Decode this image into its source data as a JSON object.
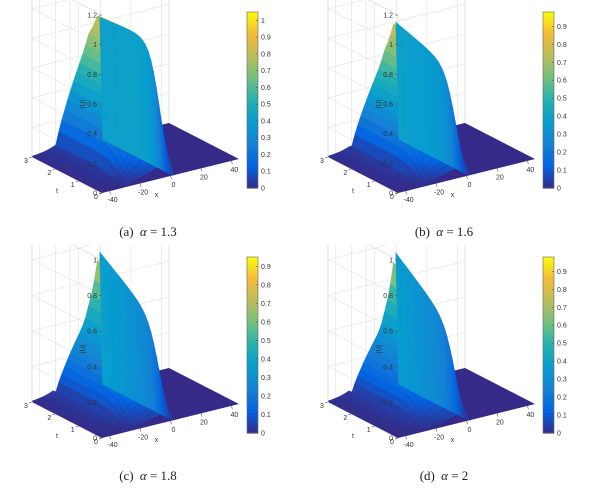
{
  "panels": [
    {
      "caption": {
        "label": "(a)",
        "symbol": "α",
        "eq": "= 1.3"
      },
      "axes": {
        "zlabel": "|U|",
        "xlabel": "x",
        "ylabel": "t",
        "zticks": [
          "0",
          "0.2",
          "0.4",
          "0.6",
          "0.8",
          "1",
          "1.2"
        ],
        "zlim": [
          0,
          1.2
        ],
        "xticks": [
          "-40",
          "-20",
          "0",
          "20",
          "40"
        ],
        "yticks": [
          "0",
          "1",
          "2",
          "3"
        ]
      },
      "colorbar": {
        "ticks": [
          "0",
          "0.1",
          "0.2",
          "0.3",
          "0.4",
          "0.5",
          "0.6",
          "0.7",
          "0.8",
          "0.9",
          "1"
        ],
        "cmax": 1.05
      },
      "surface": {
        "front_peak": 1.02,
        "back_peak": 0.95,
        "shoulder": 0.72
      }
    },
    {
      "caption": {
        "label": "(b)",
        "symbol": "α",
        "eq": "= 1.6"
      },
      "axes": {
        "zlabel": "|U|",
        "xlabel": "x",
        "ylabel": "t",
        "zticks": [
          "0",
          "0.2",
          "0.4",
          "0.6",
          "0.8",
          "1",
          "1.2"
        ],
        "zlim": [
          0,
          1.2
        ],
        "xticks": [
          "-40",
          "-20",
          "0",
          "20",
          "40"
        ],
        "yticks": [
          "0",
          "1",
          "2",
          "3"
        ]
      },
      "colorbar": {
        "ticks": [
          "0",
          "0.1",
          "0.2",
          "0.3",
          "0.4",
          "0.5",
          "0.6",
          "0.7",
          "0.8",
          "0.9"
        ],
        "cmax": 0.98
      },
      "surface": {
        "front_peak": 0.72,
        "back_peak": 0.95,
        "shoulder": 0.6
      }
    },
    {
      "caption": {
        "label": "(c)",
        "symbol": "α",
        "eq": "= 1.8"
      },
      "axes": {
        "zlabel": "|U|",
        "xlabel": "x",
        "ylabel": "t",
        "zticks": [
          "0",
          "0.2",
          "0.4",
          "0.6",
          "0.8",
          "1"
        ],
        "zlim": [
          0,
          1.0
        ],
        "xticks": [
          "-40",
          "-20",
          "0",
          "20",
          "40"
        ],
        "yticks": [
          "0",
          "1",
          "2",
          "3"
        ]
      },
      "colorbar": {
        "ticks": [
          "0",
          "0.1",
          "0.2",
          "0.3",
          "0.4",
          "0.5",
          "0.6",
          "0.7",
          "0.8",
          "0.9"
        ],
        "cmax": 0.95
      },
      "surface": {
        "front_peak": 0.52,
        "back_peak": 0.95,
        "shoulder": 0.42
      }
    },
    {
      "caption": {
        "label": "(d)",
        "symbol": "α",
        "eq": "= 2"
      },
      "axes": {
        "zlabel": "|U|",
        "xlabel": "x",
        "ylabel": "t",
        "zticks": [
          "0",
          "0.2",
          "0.4",
          "0.6",
          "0.8",
          "1"
        ],
        "zlim": [
          0,
          1.0
        ],
        "xticks": [
          "-40",
          "-20",
          "0",
          "20",
          "40"
        ],
        "yticks": [
          "0",
          "1",
          "2",
          "3"
        ]
      },
      "colorbar": {
        "ticks": [
          "0",
          "0.1",
          "0.2",
          "0.3",
          "0.4",
          "0.5",
          "0.6",
          "0.7",
          "0.8",
          "0.9"
        ],
        "cmax": 0.98
      },
      "surface": {
        "front_peak": 0.48,
        "back_peak": 0.96,
        "shoulder": 0.38
      }
    }
  ]
}
